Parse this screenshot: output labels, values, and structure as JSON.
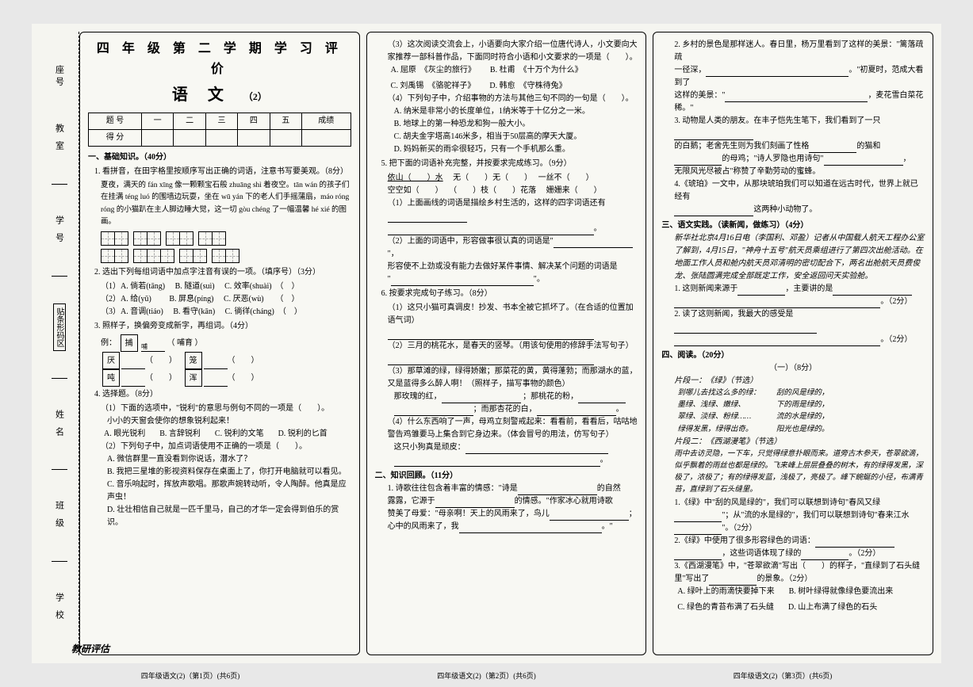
{
  "header": {
    "main": "四 年 级 第 二 学 期 学 习 评 价",
    "subject": "语 文",
    "paper_no": "（2）"
  },
  "sidebar": {
    "l1": "座号",
    "l2": "教 室",
    "l3": "学 号",
    "l4": "贴条形码区",
    "l5": "姓 名",
    "l6": "班 级",
    "l7": "学 校"
  },
  "score_table": {
    "r1": [
      "题 号",
      "一",
      "二",
      "三",
      "四",
      "五",
      "成绩"
    ],
    "r2": [
      "得 分",
      "",
      "",
      "",
      "",
      "",
      ""
    ]
  },
  "col1": {
    "s1_head": "一、基础知识。（40分）",
    "q1": "1. 看拼音，在田字格里按顺序写出正确的词语，注意书写要美观。（8分）",
    "q1_text": "夏夜，满天的 fán xīng 像一颗颗宝石般 zhuāng shì 着夜空。tān wán 的孩子们在挂满 téng luó 的围墙边玩耍，坐在 wū yán 下的老人们手摇蒲扇，máo róng róng 的小猫趴在主人脚边睡大觉，这一切 gòu chéng 了一幅温馨 hé xié 的图画。",
    "q2": "2. 选出下列每组词语中加点字注音有误的一项。（填序号）（3分）",
    "q2_r1a": "（1）A. 倘若(tāng)",
    "q2_r1b": "B. 隧道(suì)",
    "q2_r1c": "C. 效率(shuài)",
    "q2_r2a": "（2）A. 给(yǔ)",
    "q2_r2b": "B. 屏息(píng)",
    "q2_r2c": "C. 厌恶(wù)",
    "q2_r3a": "（3）A. 音调(tiáo)",
    "q2_r3b": "B. 看守(kān)",
    "q2_r3c": "C. 徜徉(cháng)",
    "q3": "3. 照样子，换偏旁变成新字，再组词。（4分）",
    "q3_ex": "例：",
    "q3_ex_char": "捕",
    "q3_ex_paren": "（ 哺育 ）",
    "q3_ex2": "哺",
    "q3_c1": "厌",
    "q3_c2": "笼",
    "q3_c3": "吨",
    "q3_c4": "浑",
    "q4": "4. 选择题。（8分）",
    "q4_1": "（1）下面的选项中，\"锐利\"的意思与例句不同的一项是（　　）。",
    "q4_1ex": "小小的天窗会使你的想象锐利起来！",
    "q4_1a": "A. 眼光锐利",
    "q4_1b": "B. 言辞锐利",
    "q4_1c": "C. 锐利的文笔",
    "q4_1d": "D. 锐利的匕首",
    "q4_2": "（2）下列句子中，加点词语使用不正确的一项是（　　）。",
    "q4_2a": "A. 微信群里一直没看到你说话，潜水了？",
    "q4_2b": "B. 我把三星堆的影视资料保存在桌面上了，你打开电脑就可以看见。",
    "q4_2c": "C. 音乐响起时，挥放声歌唱。那歌声婉转动听，令人陶醉。他真是应声虫！",
    "q4_2d": "D. 壮壮相信自己就是一匹千里马，自己的才华一定会得到伯乐的赏识。"
  },
  "col2": {
    "q4_3": "（3）这次阅读交流会上，小语要向大家介绍一位唐代诗人，小文要向大家推荐一部科普作品，下面同时符合小语和小文要求的一项是（　　）。",
    "q4_3a": "A. 屈原　《灰尘的旅行》",
    "q4_3b": "B. 杜甫　《十万个为什么》",
    "q4_3c": "C. 刘禹锡　《骆驼祥子》",
    "q4_3d": "D. 韩愈　《守株待兔》",
    "q4_4": "（4）下列句子中，介绍事物的方法与其他三句不同的一句是（　　）。",
    "q4_4a": "A. 纳米是非常小的长度单位，1纳米等于十亿分之一米。",
    "q4_4b": "B. 地球上的第一种恐龙和狗一般大小。",
    "q4_4c": "C. 胡夫金字塔高146米多，相当于50层高的摩天大厦。",
    "q4_4d": "D. 妈妈新买的雨伞很轻巧，只有一个手机那么重。",
    "q5": "5. 把下面的词语补充完整，并按要求完成练习。（9分）",
    "q5_w1a": "依山（　　）水",
    "q5_w1b": "无（　　）无（　　）",
    "q5_w1c": "一丝不（　　）",
    "q5_w2a": "空空如（　　）",
    "q5_w2b": "（　　）枝（　　）花落",
    "q5_w2c": "姗姗来（　　）",
    "q5_1": "（1）上面画线的词语是描绘乡村生活的，这样的四字词语还有",
    "q5_2": "（2）上面的词语中，形容做事很认真的词语是\"",
    "q5_2b": "形容使不上劲或没有能力去做好某件事情、解决某个问题的词语是",
    "q6": "6. 按要求完成句子练习。（8分）",
    "q6_1": "（1）这只小猫可真调皮！抄发、书本全被它抓坏了。（在合适的位置加语气词）",
    "q6_2": "（2）三月的桃花水，是春天的竖琴。（用该句使用的修辞手法写句子）",
    "q6_3": "（3）那草滩的绿，绿得娇嫩；那菜花的黄，黄得蓬勃；而那湖水的蓝，又是蓝得多么醉人啊！（照样子，描写事物的颜色）",
    "q6_3a": "那玫瑰的红，",
    "q6_3b": "；那桃花的粉，",
    "q6_3c": "；而那杏花的白，",
    "q6_4": "（4）什么东西响了一声，母鸡立刻警戒起来：看看前，看看后，咕咕地警告鸡雏要马上集合到它身边来。（体会冒号的用法，仿写句子）",
    "q6_4a": "这只小狗真是顽皮：",
    "s2_head": "二、知识回顾。（11分）",
    "s2_1": "1. 诗歌往往包含着丰富的情感：\"诗是",
    "s2_1b": "的自然",
    "s2_1c": "露露，它源于",
    "s2_1d": "的情感。\"作家冰心就用诗歌",
    "s2_1e": "赞美了母爱：\"母亲啊！天上的风雨来了，鸟儿",
    "s2_1f": "心中的风雨来了，我"
  },
  "col3": {
    "s2_2": "2. 乡村的景色是那样迷人。春日里，杨万里看到了这样的美景：\"篱落疏疏",
    "s2_2b": "一径深，",
    "s2_2c": "。\"初夏时，范成大看到了",
    "s2_2d": "这样的美景：\"",
    "s2_2e": "，麦花雪白菜花稀。\"",
    "s2_3": "3. 动物是人类的朋友。在丰子恺先生笔下，我们看到了一只",
    "s2_3b": "的白鹅；老舍先生则为我们刻画了性格",
    "s2_3c": "的猫和",
    "s2_3d": "的母鸡；\"诗人罗隐也用诗句\"",
    "s2_3e": "无限风光尽被占\"称赞了辛勤劳动的蜜蜂。",
    "s2_4": "4.《琥珀》一文中，从那块琥珀我们可以知道在远古时代，世界上就已经有",
    "s2_4b": "这两种小动物了。",
    "s3_head": "三、语文实践。（读新闻，做练习）（4分）",
    "s3_text": "新华社北京4月16日电（李国利、邓盈）记者从中国载人航天工程办公室了解到，4月15日，\"神舟十五号\"航天员乘组进行了第四次出舱活动。在地面工作人员和舱内航天员邓清明的密切配合下，两名出舱航天员费俊龙、张陆圆满完成全部既定工作，安全返回问天实验舱。",
    "s3_1": "1. 这则新闻来源于",
    "s3_1b": "，主要讲的是",
    "s3_1c": "。（2分）",
    "s3_2": "2. 读了这则新闻，我最大的感受是",
    "s3_2b": "。（2分）",
    "s4_head": "四、阅读。（20分）",
    "s4_title": "（一）（8分）",
    "s4_p1": "片段一：《绿》（节选）",
    "poem_l1": "到哪儿去找这么多的绿：",
    "poem_r1": "刮的风是绿的，",
    "poem_l2": "墨绿、浅绿、嫩绿、",
    "poem_r2": "下的雨是绿的，",
    "poem_l3": "翠绿、淡绿、粉绿……",
    "poem_r3": "流的水是绿的，",
    "poem_l4": "绿得发黑，绿得出奇。",
    "poem_r4": "阳光也是绿的。",
    "s4_p2": "片段二：《西湖漫笔》（节选）",
    "s4_p2t": "雨中去访灵隐，一下车，只觉得绿意扑眼而来。道旁古木参天，苍翠欲滴，似乎飘着的雨丝也都是绿的。飞来峰上层层叠叠的树木，有的绿得发黑，深极了，浓极了；有的绿得发蓝，浅极了，亮极了。峰下蜿蜒的小径，布满青苔，直绿到了石头缝里。",
    "s4_q1": "1.《绿》中\"刮的风是绿的\"，我们可以联想到诗句\"春风又绿",
    "s4_q1b": "\"；从\"流的水是绿的\"，我们可以联想到诗句\"春来江水",
    "s4_q1c": "\"。（2分）",
    "s4_q2": "2.《绿》中使用了很多形容绿色的词语：",
    "s4_q2b": "，这些词语体现了绿的",
    "s4_q2c": "。（2分）",
    "s4_q3": "3.《西湖漫笔》中，\"苍翠欲滴\"写出（　　）的样子，\"直绿到了石头缝里\"写出了",
    "s4_q3b": "的景象。（2分）",
    "s4_q3a": "A. 绿叶上的雨滴快要掉下来",
    "s4_q3b2": "B. 树叶绿得就像绿色要流出来",
    "s4_q3c": "C. 绿色的青苔布满了石头缝",
    "s4_q3d": "D. 山上布满了绿色的石头"
  },
  "footer": {
    "brand": "教研评估",
    "p1": "四年级语文(2)（第1页）(共6页)",
    "p2": "四年级语文(2)（第2页）(共6页)",
    "p3": "四年级语文(2)（第3页）(共6页)"
  }
}
